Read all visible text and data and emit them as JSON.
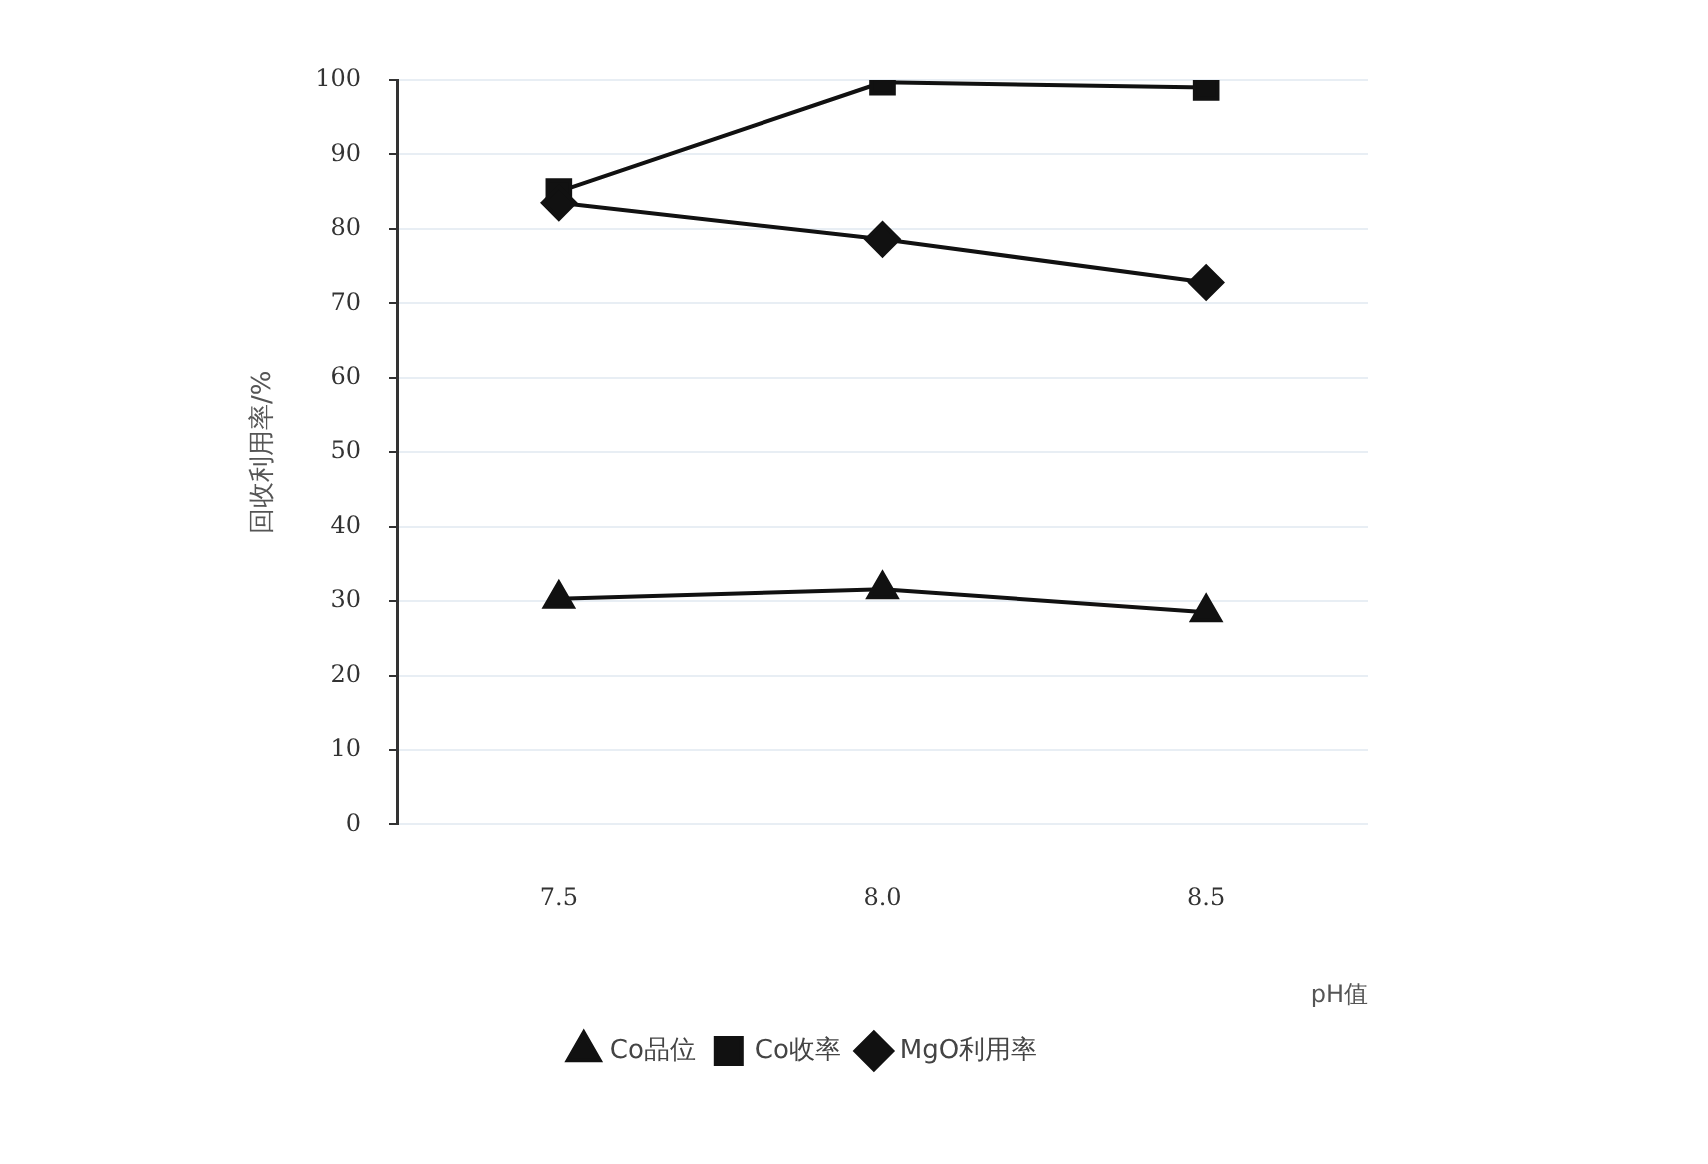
{
  "chart_data": {
    "type": "line",
    "ylabel": "回收利用率/%",
    "xlabel": "pH值",
    "categories": [
      "7.5",
      "8.0",
      "8.5"
    ],
    "series": [
      {
        "name": "Co品位",
        "color": "#111111",
        "marker": "triangle",
        "values": [
          30.3,
          31.6,
          28.5
        ]
      },
      {
        "name": "Co收率",
        "color": "#111111",
        "marker": "square",
        "values": [
          85.0,
          99.7,
          99.0
        ]
      },
      {
        "name": "MgO利用率",
        "color": "#111111",
        "marker": "diamond",
        "values": [
          83.5,
          78.6,
          72.8
        ]
      }
    ],
    "ylim": [
      0,
      100
    ],
    "yticks": [
      0,
      10,
      20,
      30,
      40,
      50,
      60,
      70,
      80,
      90,
      100
    ],
    "grid": "y",
    "legend": "bottom",
    "line_style": "solid"
  }
}
